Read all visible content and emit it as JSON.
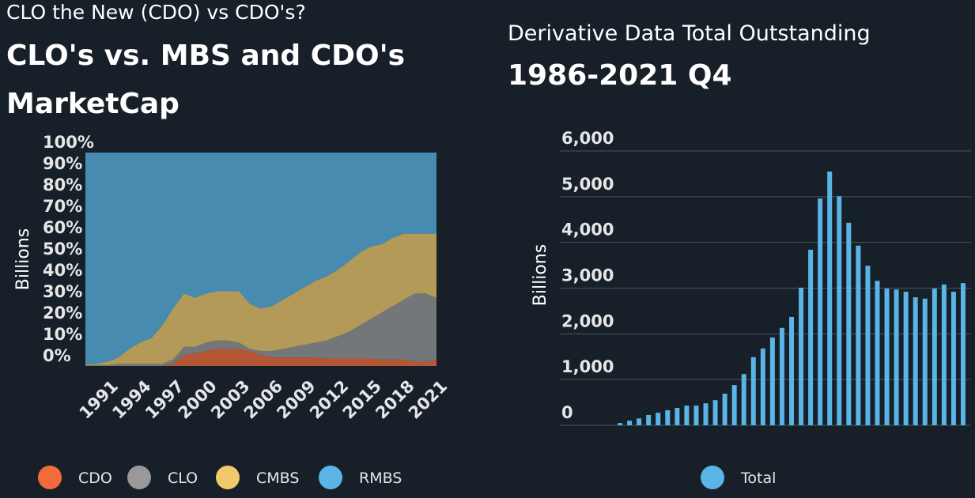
{
  "chart_data": [
    {
      "type": "stacked-area",
      "subtitle": "CLO the New (CDO) vs CDO's?",
      "title": [
        "CLO's vs. MBS and CDO's",
        "MarketCap"
      ],
      "y_label": "Billions",
      "x": [
        1989,
        1990,
        1991,
        1992,
        1993,
        1994,
        1995,
        1996,
        1997,
        1998,
        1999,
        2000,
        2001,
        2002,
        2003,
        2004,
        2005,
        2006,
        2007,
        2008,
        2009,
        2010,
        2011,
        2012,
        2013,
        2014,
        2015,
        2016,
        2017,
        2018,
        2019,
        2020,
        2021
      ],
      "xlim": [
        1989,
        2021
      ],
      "xticks": [
        1991,
        1994,
        1997,
        2000,
        2003,
        2006,
        2009,
        2012,
        2015,
        2018,
        2021
      ],
      "ylim": [
        0,
        100
      ],
      "yticks": [
        {
          "value": 0,
          "label": "0%"
        },
        {
          "value": 10,
          "label": "10%"
        },
        {
          "value": 20,
          "label": "20%"
        },
        {
          "value": 30,
          "label": "30%"
        },
        {
          "value": 40,
          "label": "40%"
        },
        {
          "value": 50,
          "label": "50%"
        },
        {
          "value": 60,
          "label": "60%"
        },
        {
          "value": 70,
          "label": "70%"
        },
        {
          "value": 80,
          "label": "80%"
        },
        {
          "value": 90,
          "label": "90%"
        },
        {
          "value": 100,
          "label": "100%"
        }
      ],
      "series": [
        {
          "name": "CDO",
          "color": "#f26b3a",
          "values": [
            0,
            0,
            0,
            0,
            0,
            0,
            0,
            0,
            1,
            5,
            6,
            7,
            8,
            8,
            8,
            7,
            5,
            4,
            4,
            4,
            4,
            4,
            3.5,
            3.5,
            3.5,
            3.5,
            3.5,
            3,
            3,
            3,
            2,
            2,
            3
          ]
        },
        {
          "name": "CLO",
          "color": "#999999",
          "values": [
            0.5,
            0.5,
            0.5,
            1,
            1,
            1,
            1,
            1,
            2,
            4,
            3,
            4,
            4,
            4,
            3,
            1,
            2,
            3,
            4,
            5,
            6,
            7,
            8.5,
            10.5,
            12.5,
            15.5,
            18.5,
            22,
            25,
            28,
            32,
            32,
            29
          ]
        },
        {
          "name": "CMBS",
          "color": "#f0c96b",
          "values": [
            0.5,
            0.5,
            1.5,
            3,
            7,
            10,
            12,
            18,
            24,
            25,
            23,
            23,
            23,
            23,
            24,
            21,
            20,
            21,
            23,
            25,
            27,
            29,
            30,
            31,
            33,
            34,
            34,
            32,
            32,
            31,
            28,
            28,
            30
          ]
        },
        {
          "name": "RMBS",
          "color": "#5ab4e5",
          "values": [
            99,
            99,
            98,
            96,
            92,
            89,
            87,
            81,
            73,
            66,
            68,
            66,
            65,
            65,
            65,
            71,
            73,
            72,
            69,
            66,
            63,
            60,
            58,
            55,
            51,
            47,
            44,
            43,
            40,
            38,
            38,
            38,
            38
          ]
        }
      ]
    },
    {
      "type": "bar",
      "subtitle": "Derivative Data Total Outstanding",
      "title": "1986-2021 Q4",
      "y_label": "Billions",
      "ylim": [
        0,
        6000
      ],
      "yticks": [
        0,
        {
          "value": 1000,
          "label": "1,000"
        },
        {
          "value": 2000,
          "label": "2,000"
        },
        {
          "value": 3000,
          "label": "3,000"
        },
        {
          "value": 4000,
          "label": "4,000"
        },
        {
          "value": 5000,
          "label": "5,000"
        },
        {
          "value": 6000,
          "label": "6,000"
        }
      ],
      "grid": true,
      "series": [
        {
          "name": "Total",
          "color": "#5ab4e5",
          "values": [
            50,
            100,
            150,
            225,
            275,
            330,
            380,
            430,
            430,
            480,
            550,
            690,
            880,
            1120,
            1490,
            1680,
            1920,
            2130,
            2370,
            3010,
            3840,
            4960,
            5550,
            5010,
            4430,
            3930,
            3490,
            3160,
            2990,
            2970,
            2920,
            2800,
            2770,
            2990,
            3080,
            2920,
            3110
          ]
        }
      ]
    }
  ]
}
